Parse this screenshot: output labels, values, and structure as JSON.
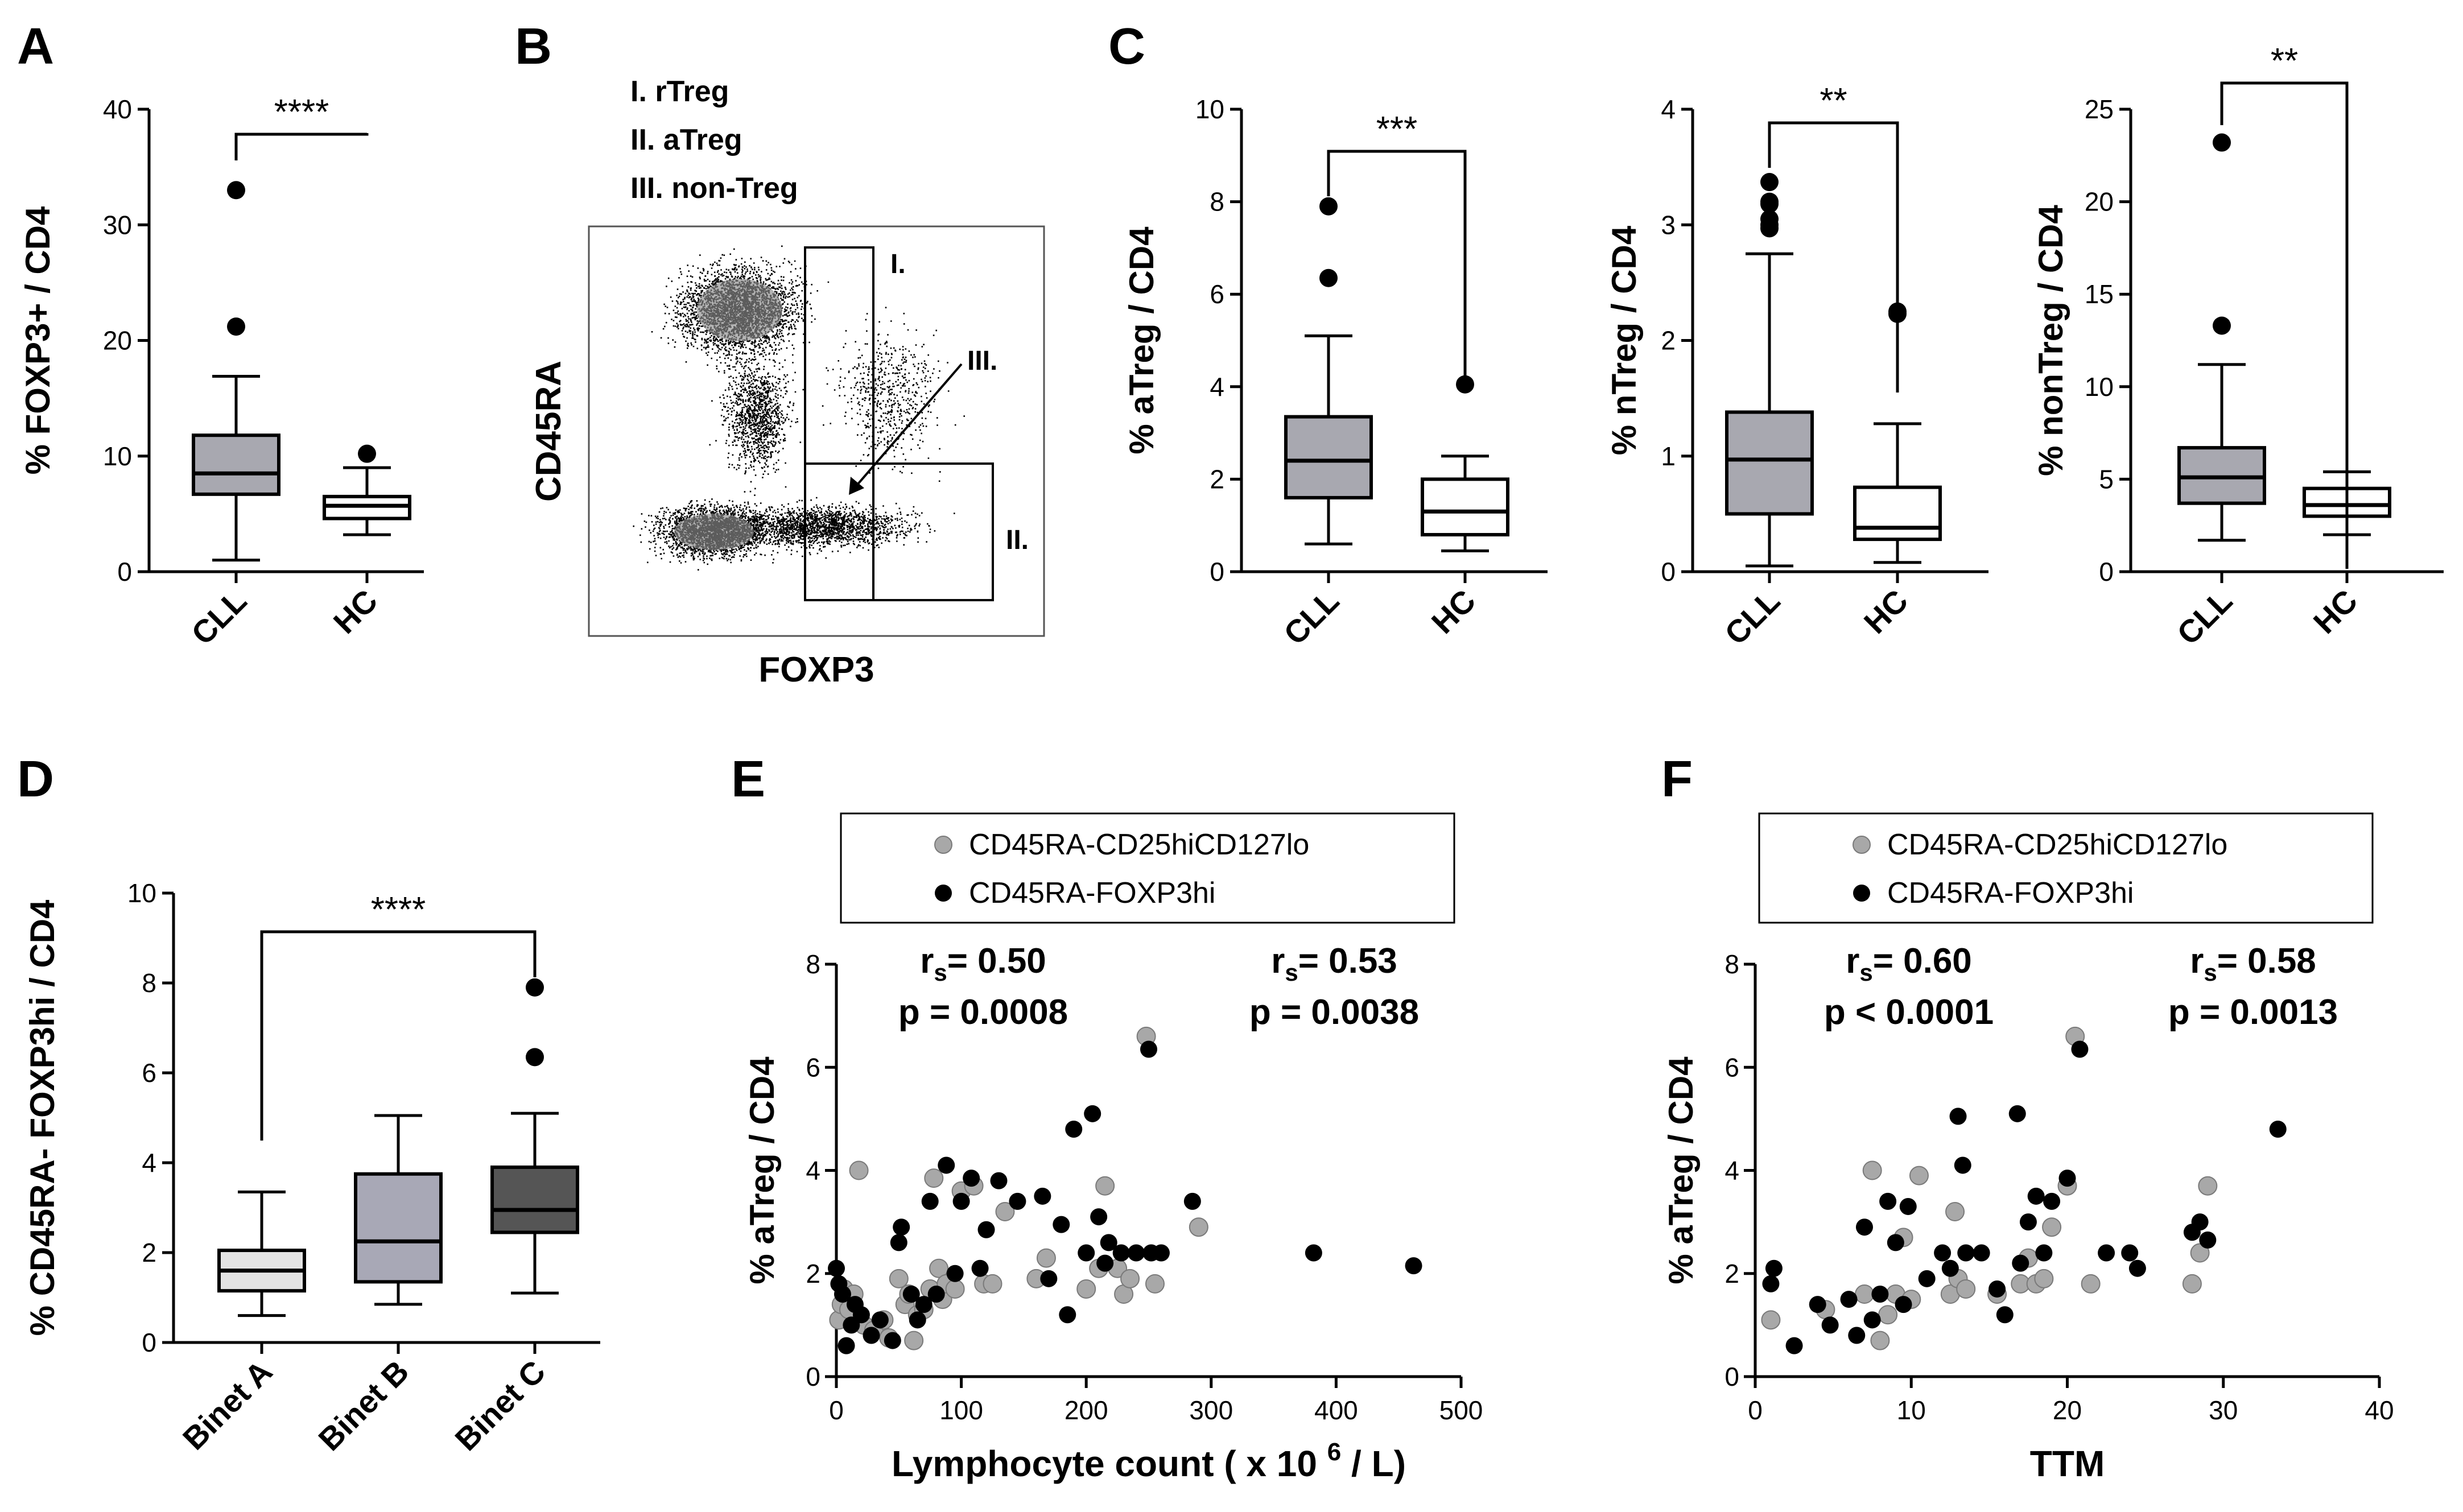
{
  "panels": {
    "A": "A",
    "B": "B",
    "C": "C",
    "D": "D",
    "E": "E",
    "F": "F"
  },
  "colors": {
    "box_grey": "#a8a8b0",
    "box_white": "#ffffff",
    "box_light": "#e4e4e4",
    "box_mid": "#a8a8b6",
    "box_dark": "#555555",
    "point_grey": "#a8a8a8",
    "point_black": "#000000",
    "stat_grey": "#8c8c8c"
  },
  "chart_data": [
    {
      "id": "A",
      "type": "box",
      "categories": [
        "CLL",
        "HC"
      ],
      "ylabel": "% FOXP3+ / CD4",
      "ylim": [
        0,
        40
      ],
      "yticks": [
        0,
        10,
        20,
        30,
        40
      ],
      "boxes": [
        {
          "min": 1,
          "q1": 6.7,
          "median": 8.5,
          "q3": 11.8,
          "max": 16.9,
          "outliers": [
            21.2,
            33
          ]
        },
        {
          "min": 3.2,
          "q1": 4.6,
          "median": 5.7,
          "q3": 6.5,
          "max": 9.0,
          "outliers": [
            10.2
          ]
        }
      ],
      "significance": "****"
    },
    {
      "id": "B",
      "type": "scatter",
      "title": "",
      "xlabel": "FOXP3",
      "ylabel": "CD45RA",
      "legend": [
        "I.  rTreg",
        "II.  aTreg",
        "III. non-Treg"
      ],
      "gate_labels": [
        "I.",
        "II.",
        "III."
      ]
    },
    {
      "id": "C1",
      "type": "box",
      "categories": [
        "CLL",
        "HC"
      ],
      "ylabel": "% aTreg / CD4",
      "ylim": [
        0,
        10
      ],
      "yticks": [
        0,
        2,
        4,
        6,
        8,
        10
      ],
      "boxes": [
        {
          "min": 0.6,
          "q1": 1.6,
          "median": 2.4,
          "q3": 3.35,
          "max": 5.1,
          "outliers": [
            6.35,
            7.9
          ]
        },
        {
          "min": 0.45,
          "q1": 0.8,
          "median": 1.3,
          "q3": 2.0,
          "max": 2.5,
          "outliers": [
            4.05
          ]
        }
      ],
      "significance": "***"
    },
    {
      "id": "C2",
      "type": "box",
      "categories": [
        "CLL",
        "HC"
      ],
      "ylabel": "% nTreg / CD4",
      "ylim": [
        0,
        4
      ],
      "yticks": [
        0,
        1,
        2,
        3,
        4
      ],
      "boxes": [
        {
          "min": 0.05,
          "q1": 0.5,
          "median": 0.97,
          "q3": 1.38,
          "max": 2.75,
          "outliers": [
            2.97,
            3.0,
            3.05,
            3.18,
            3.2,
            3.37
          ]
        },
        {
          "min": 0.08,
          "q1": 0.28,
          "median": 0.38,
          "q3": 0.73,
          "max": 1.28,
          "outliers": [
            2.23,
            2.25
          ]
        }
      ],
      "significance": "**"
    },
    {
      "id": "C3",
      "type": "box",
      "categories": [
        "CLL",
        "HC"
      ],
      "ylabel": "% nonTreg / CD4",
      "ylim": [
        0,
        25
      ],
      "yticks": [
        0,
        5,
        10,
        15,
        20,
        25
      ],
      "boxes": [
        {
          "min": 1.7,
          "q1": 3.7,
          "median": 5.1,
          "q3": 6.7,
          "max": 11.2,
          "outliers": [
            13.3,
            23.2
          ]
        },
        {
          "min": 2.0,
          "q1": 3.0,
          "median": 3.6,
          "q3": 4.5,
          "max": 5.4,
          "outliers": []
        }
      ],
      "significance": "**"
    },
    {
      "id": "D",
      "type": "box",
      "categories": [
        "Binet A",
        "Binet B",
        "Binet C"
      ],
      "ylabel": "% CD45RA- FOXP3hi / CD4",
      "ylim": [
        0,
        10
      ],
      "yticks": [
        0,
        2,
        4,
        6,
        8,
        10
      ],
      "boxes": [
        {
          "min": 0.6,
          "q1": 1.15,
          "median": 1.6,
          "q3": 2.05,
          "max": 3.35,
          "outliers": []
        },
        {
          "min": 0.85,
          "q1": 1.35,
          "median": 2.25,
          "q3": 3.75,
          "max": 5.05,
          "outliers": []
        },
        {
          "min": 1.1,
          "q1": 2.45,
          "median": 2.95,
          "q3": 3.9,
          "max": 5.1,
          "outliers": [
            6.35,
            7.9
          ]
        }
      ],
      "significance": "****"
    },
    {
      "id": "E",
      "type": "scatter",
      "xlabel": "Lymphocyte count ( x 10",
      "xlabel_sup": "6",
      "xlabel_tail": " / L)",
      "ylabel": "% aTreg / CD4",
      "xlim": [
        0,
        500
      ],
      "xticks": [
        0,
        100,
        200,
        300,
        400,
        500
      ],
      "ylim": [
        0,
        8
      ],
      "yticks": [
        0,
        2,
        4,
        6,
        8
      ],
      "legend": [
        "CD45RA-CD25hiCD127lo",
        "CD45RA-FOXP3hi"
      ],
      "stats": {
        "black_r_prefix": "r",
        "black_r_sub": "s",
        "black_r_val": "= 0.50",
        "black_p": "p = 0.0008",
        "grey_r_prefix": "r",
        "grey_r_sub": "s",
        "grey_r_val": "= 0.53",
        "grey_p": "p = 0.0038"
      },
      "series": [
        {
          "name": "CD45RA-CD25hiCD127lo",
          "color": "grey",
          "points": [
            [
              2,
              1.1
            ],
            [
              4,
              1.4
            ],
            [
              6,
              1.7
            ],
            [
              10,
              1.3
            ],
            [
              14,
              1.6
            ],
            [
              18,
              4.0
            ],
            [
              22,
              1.0
            ],
            [
              30,
              0.9
            ],
            [
              38,
              1.1
            ],
            [
              42,
              0.75
            ],
            [
              50,
              1.9
            ],
            [
              55,
              1.4
            ],
            [
              58,
              1.6
            ],
            [
              62,
              0.7
            ],
            [
              65,
              1.2
            ],
            [
              70,
              1.3
            ],
            [
              75,
              1.7
            ],
            [
              78,
              3.85
            ],
            [
              82,
              2.1
            ],
            [
              85,
              1.5
            ],
            [
              88,
              1.8
            ],
            [
              95,
              1.7
            ],
            [
              100,
              3.6
            ],
            [
              110,
              3.7
            ],
            [
              118,
              1.8
            ],
            [
              125,
              1.8
            ],
            [
              135,
              3.2
            ],
            [
              160,
              1.9
            ],
            [
              168,
              2.3
            ],
            [
              200,
              1.7
            ],
            [
              210,
              2.1
            ],
            [
              215,
              3.7
            ],
            [
              225,
              2.1
            ],
            [
              230,
              1.6
            ],
            [
              235,
              1.9
            ],
            [
              248,
              6.6
            ],
            [
              255,
              1.8
            ],
            [
              290,
              2.9
            ]
          ]
        },
        {
          "name": "CD45RA-FOXP3hi",
          "color": "black",
          "points": [
            [
              0,
              2.1
            ],
            [
              2,
              1.8
            ],
            [
              5,
              1.6
            ],
            [
              8,
              0.6
            ],
            [
              12,
              1.0
            ],
            [
              15,
              1.4
            ],
            [
              20,
              1.2
            ],
            [
              28,
              0.8
            ],
            [
              35,
              1.1
            ],
            [
              45,
              0.7
            ],
            [
              50,
              2.6
            ],
            [
              52,
              2.9
            ],
            [
              60,
              1.6
            ],
            [
              65,
              1.1
            ],
            [
              70,
              1.4
            ],
            [
              75,
              3.4
            ],
            [
              80,
              1.6
            ],
            [
              88,
              4.1
            ],
            [
              95,
              2.0
            ],
            [
              100,
              3.4
            ],
            [
              108,
              3.85
            ],
            [
              115,
              2.1
            ],
            [
              120,
              2.85
            ],
            [
              130,
              3.8
            ],
            [
              145,
              3.4
            ],
            [
              165,
              3.5
            ],
            [
              170,
              1.9
            ],
            [
              180,
              2.95
            ],
            [
              185,
              1.2
            ],
            [
              190,
              4.8
            ],
            [
              200,
              2.4
            ],
            [
              205,
              5.1
            ],
            [
              210,
              3.1
            ],
            [
              215,
              2.2
            ],
            [
              218,
              2.6
            ],
            [
              228,
              2.4
            ],
            [
              240,
              2.4
            ],
            [
              250,
              6.35
            ],
            [
              252,
              2.4
            ],
            [
              260,
              2.4
            ],
            [
              285,
              3.4
            ],
            [
              382,
              2.4
            ],
            [
              462,
              2.15
            ]
          ]
        }
      ]
    },
    {
      "id": "F",
      "type": "scatter",
      "xlabel": "TTM",
      "ylabel": "% aTreg / CD4",
      "xlim": [
        0,
        40
      ],
      "xticks": [
        0,
        10,
        20,
        30,
        40
      ],
      "ylim": [
        0,
        8
      ],
      "yticks": [
        0,
        2,
        4,
        6,
        8
      ],
      "legend": [
        "CD45RA-CD25hiCD127lo",
        "CD45RA-FOXP3hi"
      ],
      "stats": {
        "black_r_prefix": "r",
        "black_r_sub": "s",
        "black_r_val": "= 0.60",
        "black_p": "p < 0.0001",
        "grey_r_prefix": "r",
        "grey_r_sub": "s",
        "grey_r_val": "= 0.58",
        "grey_p": "p = 0.0013"
      },
      "series": [
        {
          "name": "CD45RA-CD25hiCD127lo",
          "color": "grey",
          "points": [
            [
              1,
              1.1
            ],
            [
              4.5,
              1.3
            ],
            [
              7,
              1.6
            ],
            [
              7.5,
              4.0
            ],
            [
              8,
              0.7
            ],
            [
              8.5,
              1.2
            ],
            [
              9,
              1.6
            ],
            [
              9.5,
              2.7
            ],
            [
              10,
              1.5
            ],
            [
              10.5,
              3.9
            ],
            [
              12.5,
              1.6
            ],
            [
              12.8,
              3.2
            ],
            [
              13,
              1.9
            ],
            [
              13.5,
              1.7
            ],
            [
              15.5,
              1.6
            ],
            [
              17,
              1.8
            ],
            [
              17.5,
              2.3
            ],
            [
              18,
              1.8
            ],
            [
              18.5,
              1.9
            ],
            [
              19,
              2.9
            ],
            [
              20,
              3.7
            ],
            [
              20.5,
              6.6
            ],
            [
              21.5,
              1.8
            ],
            [
              28,
              1.8
            ],
            [
              28.5,
              2.4
            ],
            [
              29,
              3.7
            ]
          ]
        },
        {
          "name": "CD45RA-FOXP3hi",
          "color": "black",
          "points": [
            [
              1,
              1.8
            ],
            [
              1.2,
              2.1
            ],
            [
              2.5,
              0.6
            ],
            [
              4,
              1.4
            ],
            [
              4.8,
              1.0
            ],
            [
              6,
              1.5
            ],
            [
              6.5,
              0.8
            ],
            [
              7,
              2.9
            ],
            [
              7.5,
              1.1
            ],
            [
              8,
              1.6
            ],
            [
              8.5,
              3.4
            ],
            [
              9,
              2.6
            ],
            [
              9.5,
              1.4
            ],
            [
              9.8,
              3.3
            ],
            [
              11,
              1.9
            ],
            [
              12,
              2.4
            ],
            [
              12.5,
              2.1
            ],
            [
              13,
              5.05
            ],
            [
              13.3,
              4.1
            ],
            [
              13.5,
              2.4
            ],
            [
              14.5,
              2.4
            ],
            [
              15.5,
              1.7
            ],
            [
              16,
              1.2
            ],
            [
              16.8,
              5.1
            ],
            [
              17,
              2.2
            ],
            [
              17.5,
              3.0
            ],
            [
              18,
              3.5
            ],
            [
              18.5,
              2.4
            ],
            [
              19,
              3.4
            ],
            [
              20,
              3.85
            ],
            [
              20.8,
              6.35
            ],
            [
              22.5,
              2.4
            ],
            [
              24,
              2.4
            ],
            [
              24.5,
              2.1
            ],
            [
              28,
              2.8
            ],
            [
              28.5,
              3.0
            ],
            [
              29,
              2.65
            ],
            [
              33.5,
              4.8
            ]
          ]
        }
      ]
    }
  ]
}
